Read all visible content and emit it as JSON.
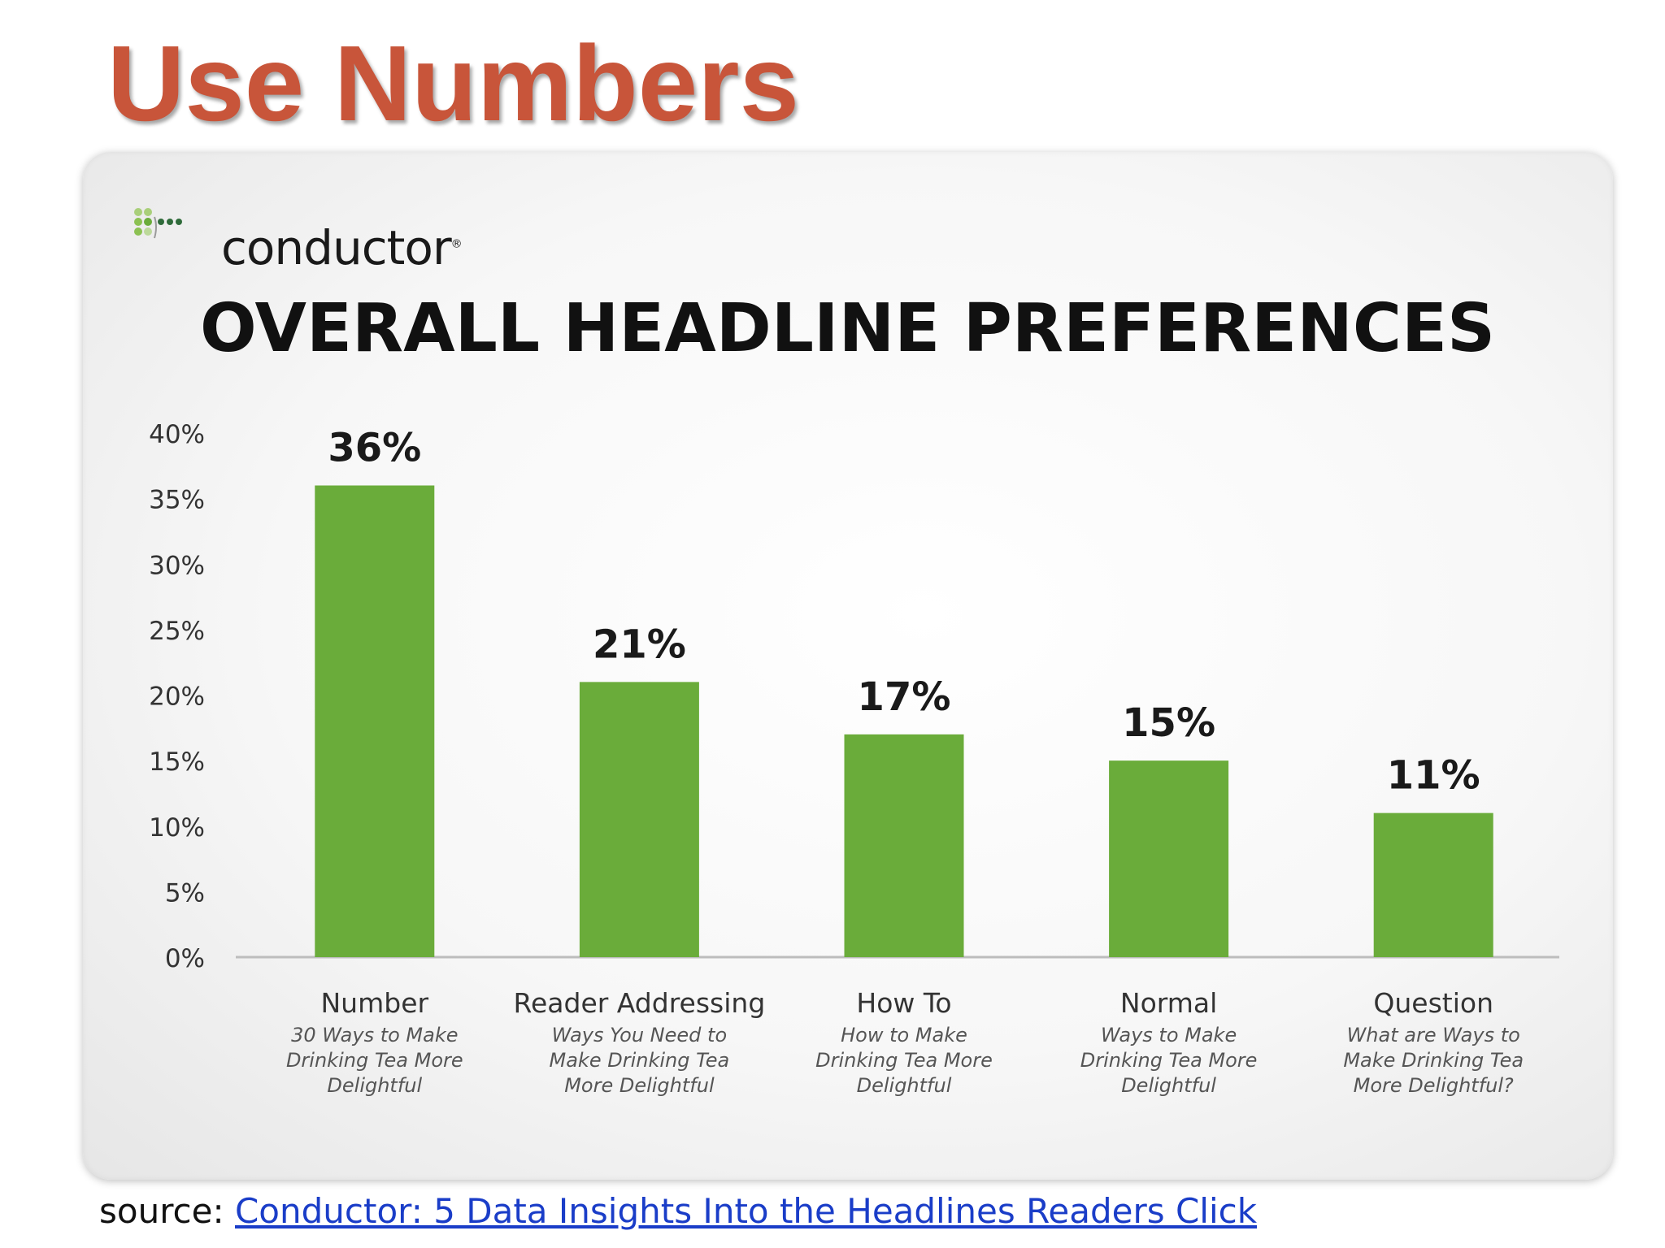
{
  "slide": {
    "title": "Use Numbers",
    "source_prefix": "source:",
    "source_link": "Conductor: 5 Data Insights Into the Headlines Readers Click"
  },
  "brand": {
    "logo_text": "conductor",
    "logo_icon": "conductor-dots-icon",
    "colors": {
      "title": "#c8553a",
      "bar": "#6aac3a",
      "link": "#1a3dc8"
    }
  },
  "chart_data": {
    "type": "bar",
    "title": "OVERALL HEADLINE PREFERENCES",
    "categories": [
      "Number",
      "Reader Addressing",
      "How To",
      "Normal",
      "Question"
    ],
    "subcategories": [
      [
        "30 Ways to Make",
        "Drinking Tea More",
        "Delightful"
      ],
      [
        "Ways You Need to",
        "Make Drinking Tea",
        "More Delightful"
      ],
      [
        "How to Make",
        "Drinking Tea More",
        "Delightful"
      ],
      [
        "Ways to Make",
        "Drinking Tea More",
        "Delightful"
      ],
      [
        "What are Ways to",
        "Make Drinking Tea",
        "More Delightful?"
      ]
    ],
    "values": [
      36,
      21,
      17,
      15,
      11
    ],
    "data_labels": [
      "36%",
      "21%",
      "17%",
      "15%",
      "11%"
    ],
    "yticks": [
      "0%",
      "5%",
      "10%",
      "15%",
      "20%",
      "25%",
      "30%",
      "35%",
      "40%"
    ],
    "ylim": [
      0,
      40
    ],
    "xlabel": "",
    "ylabel": "",
    "grid": false,
    "legend": "none"
  }
}
